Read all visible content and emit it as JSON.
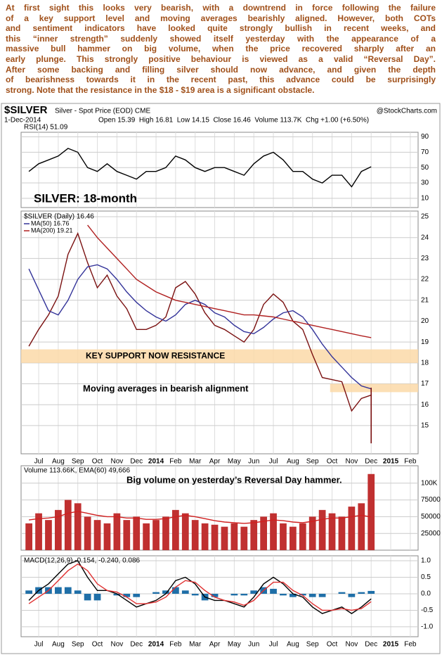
{
  "intro": [
    "At first sight this looks very bearish, with a downtrend in force following the failure",
    "of a key support level and moving averages bearishly aligned. However, both COTs",
    "and sentiment indicators have looked quite strongly bullish in recent weeks, and",
    "this “inner strength” suddenly showed itself yesterday with the appearance of a",
    "massive bull hammer on big volume, when the price recovered sharply after an",
    "early plunge. This strongly positive behaviour is viewed as a valid “Reversal Day”.",
    "After some backing and filling silver should now advance, and given the depth",
    "of bearishness towards it in the recent past, this advance could be surprisingly",
    "strong. Note that the resistance in the $18 - $19 area is a significant obstacle."
  ],
  "header": {
    "symbol": "$SILVER",
    "name": "Silver - Spot Price (EOD) CME",
    "source": "@StockCharts.com",
    "date": "1-Dec-2014",
    "quote": "Open 15.39  High 16.81  Low 14.15  Close 16.46  Volume 113.7K  Chg +1.00 (+6.50%)"
  },
  "chart_data": [
    {
      "type": "line",
      "title": "RSI(14) 51.09",
      "grid": true,
      "x": [
        -0.5,
        0,
        0.5,
        1,
        1.5,
        2,
        2.5,
        3,
        3.5,
        4,
        4.5,
        5,
        5.5,
        6,
        6.5,
        7,
        7.5,
        8,
        8.5,
        9,
        9.5,
        10,
        10.5,
        11,
        11.5,
        12,
        12.5,
        13,
        13.5,
        14,
        14.5,
        15,
        15.5,
        16,
        16.5,
        17
      ],
      "xlim": [
        -0.9,
        19.4
      ],
      "ylim": [
        -2,
        96
      ],
      "yticks": [
        10,
        30,
        50,
        70,
        90
      ],
      "series": [
        {
          "color": "#000000",
          "values": [
            45,
            55,
            60,
            65,
            75,
            70,
            50,
            45,
            55,
            45,
            40,
            35,
            45,
            45,
            50,
            65,
            60,
            50,
            45,
            50,
            50,
            45,
            40,
            55,
            65,
            70,
            60,
            45,
            45,
            35,
            30,
            40,
            40,
            25,
            45,
            51.09
          ]
        }
      ]
    },
    {
      "type": "line",
      "title": "$SILVER (Daily) 16.46",
      "grid": true,
      "x": [
        -0.5,
        0,
        0.5,
        1,
        1.5,
        2,
        2.5,
        3,
        3.5,
        4,
        4.5,
        5,
        5.5,
        6,
        6.5,
        7,
        7.5,
        8,
        8.5,
        9,
        9.5,
        10,
        10.5,
        11,
        11.5,
        12,
        12.5,
        13,
        13.5,
        14,
        14.5,
        15,
        15.5,
        16,
        16.5,
        17
      ],
      "xlim": [
        -0.9,
        19.4
      ],
      "ylim": [
        13.65,
        25.27
      ],
      "yticks": [
        15,
        16,
        17,
        18,
        19,
        20,
        21,
        22,
        23,
        24,
        25
      ],
      "xticks": [
        {
          "value": 0,
          "label": "Jul"
        },
        {
          "value": 1,
          "label": "Aug"
        },
        {
          "value": 2,
          "label": "Sep"
        },
        {
          "value": 3,
          "label": "Oct"
        },
        {
          "value": 4,
          "label": "Nov"
        },
        {
          "value": 5,
          "label": "Dec"
        },
        {
          "value": 6,
          "label": "2014"
        },
        {
          "value": 7,
          "label": "Feb"
        },
        {
          "value": 8,
          "label": "Mar"
        },
        {
          "value": 9,
          "label": "Apr"
        },
        {
          "value": 10,
          "label": "May"
        },
        {
          "value": 11,
          "label": "Jun"
        },
        {
          "value": 12,
          "label": "Jul"
        },
        {
          "value": 13,
          "label": "Aug"
        },
        {
          "value": 14,
          "label": "Sep"
        },
        {
          "value": 15,
          "label": "Oct"
        },
        {
          "value": 16,
          "label": "Nov"
        },
        {
          "value": 17,
          "label": "Dec"
        },
        {
          "value": 18,
          "label": "2015"
        },
        {
          "value": 19,
          "label": "Feb"
        }
      ],
      "series": [
        {
          "color": "#7a1010",
          "values": [
            18.8,
            19.6,
            20.3,
            21.2,
            23.2,
            24.2,
            22.8,
            21.6,
            22.2,
            21.2,
            20.6,
            19.6,
            19.6,
            19.8,
            20.2,
            21.6,
            21.9,
            21.3,
            20.4,
            19.8,
            19.6,
            19.3,
            19.0,
            19.6,
            20.8,
            21.3,
            20.9,
            20.0,
            19.6,
            18.4,
            17.3,
            17.2,
            17.1,
            15.7,
            16.3,
            16.46
          ]
        },
        {
          "name": "MA(50) 16.76",
          "color": "#333399",
          "values": [
            22.5,
            21.5,
            20.5,
            20.3,
            21,
            22,
            22.6,
            22.7,
            22.5,
            22.0,
            21.4,
            20.9,
            20.5,
            20.2,
            20.0,
            20.3,
            20.8,
            21.0,
            20.8,
            20.4,
            20.2,
            19.8,
            19.5,
            19.4,
            19.7,
            20.1,
            20.4,
            20.5,
            20.2,
            19.6,
            18.9,
            18.3,
            17.8,
            17.3,
            16.9,
            16.76
          ]
        },
        {
          "name": "MA(200) 19.21",
          "color": "#b02020",
          "values": [
            null,
            null,
            null,
            null,
            null,
            null,
            24.6,
            24.0,
            23.5,
            23.0,
            22.5,
            22.0,
            21.7,
            21.4,
            21.2,
            21.0,
            20.9,
            20.8,
            20.7,
            20.6,
            20.5,
            20.4,
            20.3,
            20.3,
            20.25,
            20.2,
            20.1,
            20.0,
            19.9,
            19.8,
            19.7,
            19.6,
            19.5,
            19.4,
            19.3,
            19.21
          ]
        }
      ],
      "last_bar": {
        "low": 14.15,
        "high": 16.81
      },
      "band_color": "#fcd9a8",
      "bands": [
        {
          "range": [
            18.0,
            18.65
          ],
          "xrange": [
            -0.9,
            19.4
          ],
          "label": "KEY SUPPORT NOW RESISTANCE"
        },
        {
          "range": [
            16.6,
            17.0
          ],
          "xrange": [
            14.9,
            19.4
          ]
        }
      ],
      "annotations": [
        "SILVER: 18-month",
        "Moving averages in bearish alignment"
      ]
    },
    {
      "type": "bar",
      "title": "Volume 113.66K, EMA(60) 49,666",
      "grid": true,
      "x": [
        -0.5,
        0,
        0.5,
        1,
        1.5,
        2,
        2.5,
        3,
        3.5,
        4,
        4.5,
        5,
        5.5,
        6,
        6.5,
        7,
        7.5,
        8,
        8.5,
        9,
        9.5,
        10,
        10.5,
        11,
        11.5,
        12,
        12.5,
        13,
        13.5,
        14,
        14.5,
        15,
        15.5,
        16,
        16.5,
        17
      ],
      "xlim": [
        -0.9,
        19.4
      ],
      "ylim": [
        0,
        126000
      ],
      "yticks": [
        {
          "value": 25000,
          "label": "25000"
        },
        {
          "value": 50000,
          "label": "50000"
        },
        {
          "value": 75000,
          "label": "75000"
        },
        {
          "value": 100000,
          "label": "100K"
        }
      ],
      "series": [
        {
          "color": "#c03030",
          "values": [
            40000,
            55000,
            45000,
            60000,
            75000,
            70000,
            50000,
            45000,
            40000,
            55000,
            45000,
            50000,
            40000,
            45000,
            50000,
            60000,
            55000,
            45000,
            40000,
            38000,
            35000,
            40000,
            35000,
            45000,
            50000,
            55000,
            40000,
            35000,
            40000,
            50000,
            60000,
            55000,
            50000,
            65000,
            70000,
            113660
          ]
        },
        {
          "type": "line",
          "color": "#d02020",
          "values": [
            45000,
            47000,
            48000,
            50000,
            55000,
            58000,
            55000,
            52000,
            50000,
            50000,
            48000,
            48000,
            46000,
            46000,
            47000,
            50000,
            52000,
            50000,
            47000,
            44000,
            42000,
            41000,
            40000,
            41000,
            43000,
            45000,
            44000,
            42000,
            41000,
            43000,
            46000,
            48000,
            48000,
            50000,
            52000,
            49666
          ]
        }
      ],
      "annotations": [
        "Big volume on yesterday’s Reversal Day hammer."
      ]
    },
    {
      "type": "line",
      "title": "MACD(12,26,9) -0.154, -0.240, 0.086",
      "grid": true,
      "x": [
        -0.5,
        0,
        0.5,
        1,
        1.5,
        2,
        2.5,
        3,
        3.5,
        4,
        4.5,
        5,
        5.5,
        6,
        6.5,
        7,
        7.5,
        8,
        8.5,
        9,
        9.5,
        10,
        10.5,
        11,
        11.5,
        12,
        12.5,
        13,
        13.5,
        14,
        14.5,
        15,
        15.5,
        16,
        16.5,
        17
      ],
      "xlim": [
        -0.9,
        19.4
      ],
      "ylim": [
        -1.3,
        1.15
      ],
      "yticks": [
        {
          "value": -1,
          "label": "-1.0"
        },
        {
          "value": -0.5,
          "label": "-0.5"
        },
        {
          "value": 0,
          "label": "0.0"
        },
        {
          "value": 0.5,
          "label": "0.5"
        },
        {
          "value": 1,
          "label": "1.0"
        }
      ],
      "xticks": [
        {
          "value": 0,
          "label": "Jul"
        },
        {
          "value": 1,
          "label": "Aug"
        },
        {
          "value": 2,
          "label": "Sep"
        },
        {
          "value": 3,
          "label": "Oct"
        },
        {
          "value": 4,
          "label": "Nov"
        },
        {
          "value": 5,
          "label": "Dec"
        },
        {
          "value": 6,
          "label": "2014"
        },
        {
          "value": 7,
          "label": "Feb"
        },
        {
          "value": 8,
          "label": "Mar"
        },
        {
          "value": 9,
          "label": "Apr"
        },
        {
          "value": 10,
          "label": "May"
        },
        {
          "value": 11,
          "label": "Jun"
        },
        {
          "value": 12,
          "label": "Jul"
        },
        {
          "value": 13,
          "label": "Aug"
        },
        {
          "value": 14,
          "label": "Sep"
        },
        {
          "value": 15,
          "label": "Oct"
        },
        {
          "value": 16,
          "label": "Nov"
        },
        {
          "value": 17,
          "label": "Dec"
        },
        {
          "value": 18,
          "label": "2015"
        },
        {
          "value": 19,
          "label": "Feb"
        }
      ],
      "series": [
        {
          "type": "bar",
          "color": "#1f6fa8",
          "values": [
            0.1,
            0.2,
            0.2,
            0.2,
            0.2,
            0.1,
            -0.2,
            -0.2,
            0,
            -0.05,
            -0.1,
            -0.1,
            0,
            0.05,
            0.1,
            0.2,
            0.1,
            -0.05,
            -0.2,
            -0.1,
            0,
            -0.05,
            -0.05,
            0.1,
            0.2,
            0.15,
            -0.05,
            -0.1,
            -0.05,
            -0.1,
            -0.1,
            0,
            0.05,
            -0.1,
            0.05,
            0.086
          ]
        },
        {
          "color": "#000000",
          "values": [
            -0.2,
            0.1,
            0.3,
            0.6,
            0.9,
            1.0,
            0.5,
            0.1,
            0.1,
            0.0,
            -0.2,
            -0.4,
            -0.3,
            -0.2,
            0.0,
            0.4,
            0.5,
            0.3,
            -0.1,
            -0.2,
            -0.2,
            -0.3,
            -0.4,
            -0.1,
            0.3,
            0.5,
            0.3,
            0.0,
            -0.1,
            -0.4,
            -0.6,
            -0.5,
            -0.4,
            -0.6,
            -0.4,
            -0.154
          ]
        },
        {
          "color": "#e03030",
          "values": [
            -0.3,
            -0.1,
            0.1,
            0.4,
            0.7,
            0.9,
            0.7,
            0.3,
            0.1,
            0.05,
            -0.1,
            -0.3,
            -0.3,
            -0.25,
            -0.1,
            0.2,
            0.4,
            0.35,
            0.1,
            -0.1,
            -0.2,
            -0.25,
            -0.35,
            -0.2,
            0.1,
            0.35,
            0.35,
            0.1,
            -0.05,
            -0.3,
            -0.5,
            -0.5,
            -0.45,
            -0.5,
            -0.45,
            -0.24
          ]
        }
      ]
    }
  ]
}
